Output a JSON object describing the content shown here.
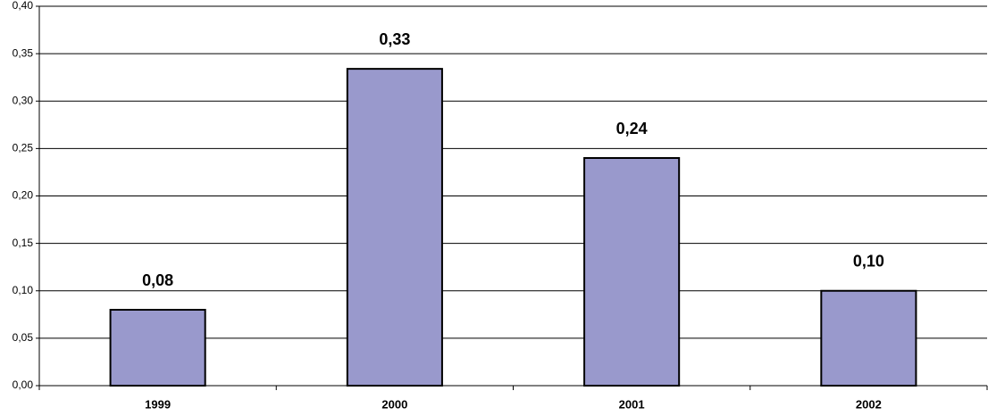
{
  "chart_data": {
    "type": "bar",
    "categories": [
      "1999",
      "2000",
      "2001",
      "2002"
    ],
    "values": [
      0.08,
      0.334,
      0.24,
      0.1
    ],
    "value_labels": [
      "0,08",
      "0,33",
      "0,24",
      "0,10"
    ],
    "color": "#9999cc",
    "ylim": [
      0,
      0.4
    ],
    "yticks": [
      {
        "value": 0,
        "label": "0,00"
      },
      {
        "value": 0.05,
        "label": "0,05"
      },
      {
        "value": 0.1,
        "label": "0,10"
      },
      {
        "value": 0.15,
        "label": "0,15"
      },
      {
        "value": 0.2,
        "label": "0,20"
      },
      {
        "value": 0.25,
        "label": "0,25"
      },
      {
        "value": 0.3,
        "label": "0,30"
      },
      {
        "value": 0.35,
        "label": "0,35"
      },
      {
        "value": 0.4,
        "label": "0,40"
      }
    ],
    "grid": true
  }
}
